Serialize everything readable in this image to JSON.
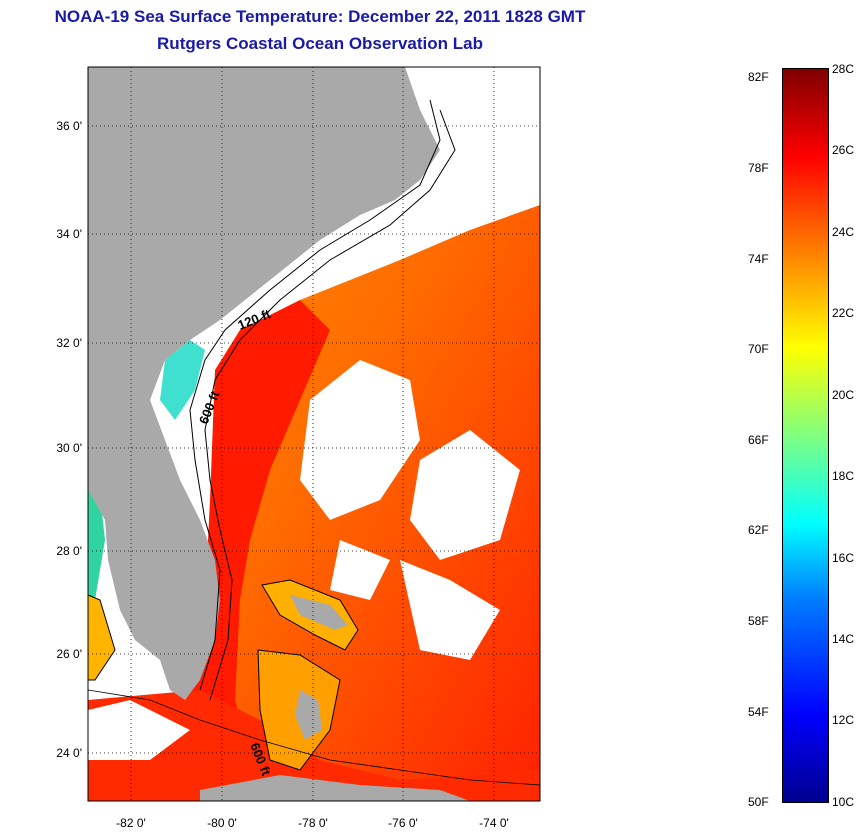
{
  "title_line1": "NOAA-19 Sea Surface Temperature:  December 22, 2011 1828 GMT",
  "title_line2": "Rutgers Coastal Ocean Observation Lab",
  "lat_ticks": [
    "36 0'",
    "34 0'",
    "32 0'",
    "30 0'",
    "28 0'",
    "26 0'",
    "24 0'"
  ],
  "lon_ticks": [
    "-82 0'",
    "-80 0'",
    "-78 0'",
    "-76 0'",
    "-74 0'"
  ],
  "contour_labels": [
    "120 ft",
    "600 ft",
    "600 ft"
  ],
  "colorbar": {
    "fahrenheit": [
      "82F",
      "78F",
      "74F",
      "70F",
      "66F",
      "62F",
      "58F",
      "54F",
      "50F"
    ],
    "celsius": [
      "28C",
      "26C",
      "24C",
      "22C",
      "20C",
      "18C",
      "16C",
      "14C",
      "12C",
      "10C"
    ]
  },
  "colors": {
    "land": "#a9a9a9",
    "title": "#1a1aa8",
    "cloud": "#ffffff"
  }
}
